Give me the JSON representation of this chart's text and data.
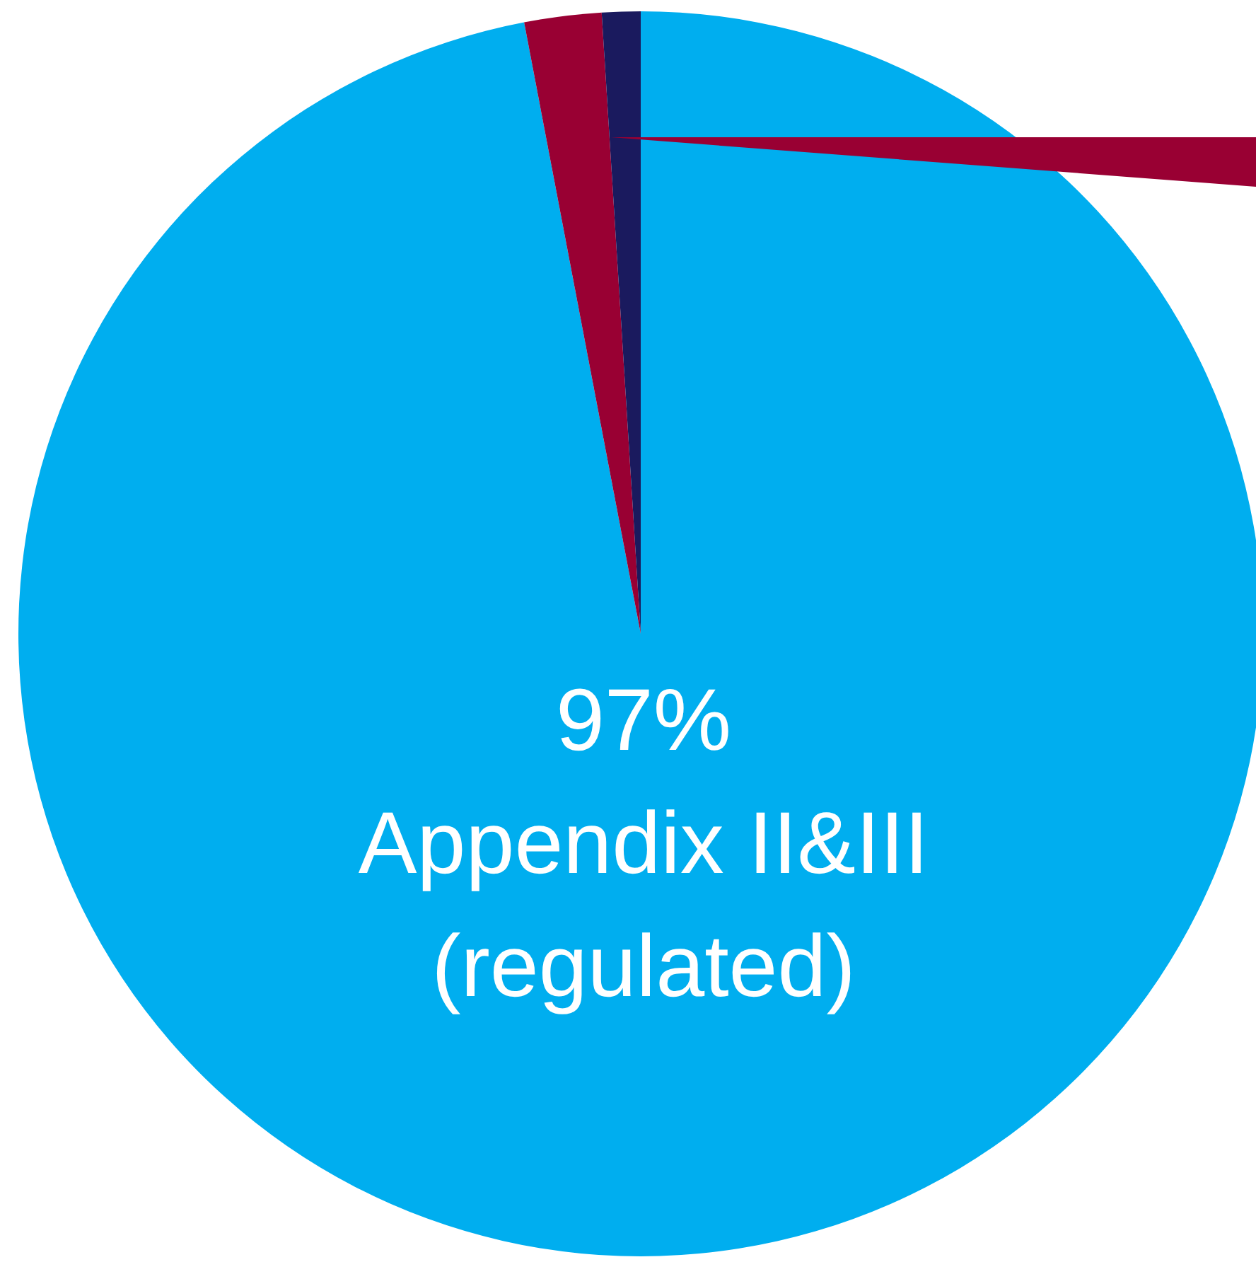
{
  "chart_data": {
    "type": "pie",
    "categories": [
      "Appendix II&III (regulated)",
      null,
      null
    ],
    "values": [
      97,
      2,
      1
    ],
    "colors": [
      "#00aeef",
      "#990033",
      "#1a1a5e"
    ],
    "value_labels": [
      "97%",
      null,
      null
    ]
  }
}
